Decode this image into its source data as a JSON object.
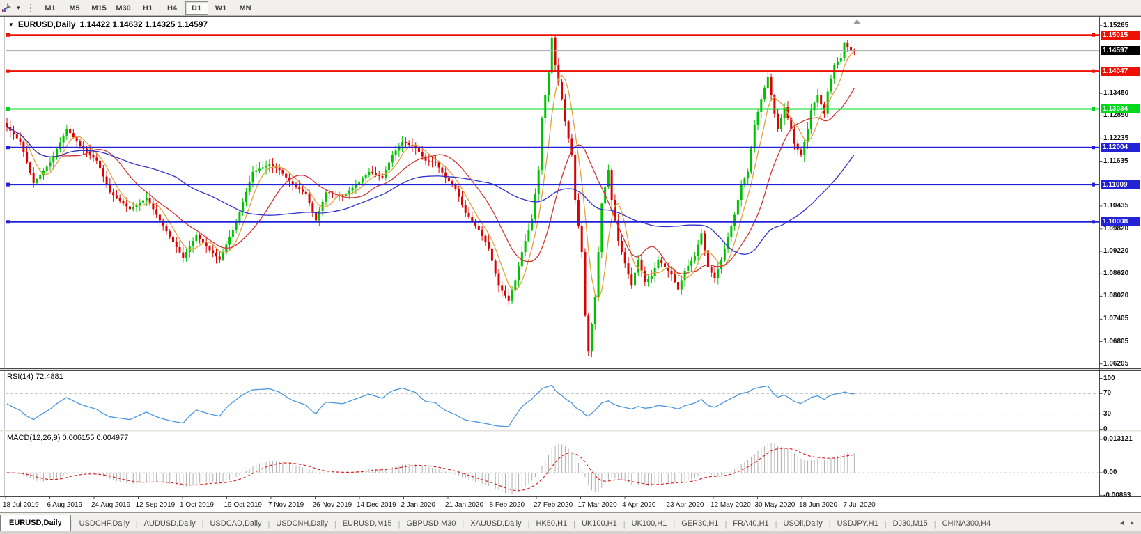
{
  "icons": {
    "dropdown": "▾",
    "title_marker": "▼",
    "scroll_left": "◂",
    "scroll_right": "▸"
  },
  "toolbar": {
    "timeframes": [
      "M1",
      "M5",
      "M15",
      "M30",
      "H1",
      "H4",
      "D1",
      "W1",
      "MN"
    ],
    "active_timeframe": "D1"
  },
  "chart_data": {
    "type": "candlestick",
    "title": "EURUSD,Daily",
    "ohlc_text": "1.14422 1.14632 1.14325 1.14597",
    "current_price": "1.14597",
    "y_axis_ticks": [
      "1.15265",
      "1.13450",
      "1.12850",
      "1.12235",
      "1.11635",
      "1.10435",
      "1.09820",
      "1.09220",
      "1.08620",
      "1.08020",
      "1.07405",
      "1.06805",
      "1.06205"
    ],
    "x_axis_dates": [
      "18 Jul 2019",
      "6 Aug 2019",
      "24 Aug 2019",
      "12 Sep 2019",
      "1 Oct 2019",
      "19 Oct 2019",
      "7 Nov 2019",
      "26 Nov 2019",
      "14 Dec 2019",
      "2 Jan 2020",
      "21 Jan 2020",
      "8 Feb 2020",
      "27 Feb 2020",
      "17 Mar 2020",
      "4 Apr 2020",
      "23 Apr 2020",
      "12 May 2020",
      "30 May 2020",
      "18 Jun 2020",
      "7 Jul 2020"
    ],
    "horizontal_levels": [
      {
        "value": "1.15015",
        "color": "#ee1000"
      },
      {
        "value": "1.14047",
        "color": "#ee1000"
      },
      {
        "value": "1.13034",
        "color": "#00d81e"
      },
      {
        "value": "1.12004",
        "color": "#2222d6"
      },
      {
        "value": "1.11009",
        "color": "#2222d6"
      },
      {
        "value": "1.10008",
        "color": "#2222d6"
      }
    ],
    "price_range": {
      "top": 1.1543,
      "bottom": 1.062
    },
    "candle_count": 256,
    "close_anchors": [
      [
        0,
        1.1255
      ],
      [
        4,
        1.1215
      ],
      [
        8,
        1.1105
      ],
      [
        13,
        1.116
      ],
      [
        18,
        1.125
      ],
      [
        22,
        1.1205
      ],
      [
        27,
        1.1165
      ],
      [
        31,
        1.108
      ],
      [
        37,
        1.1035
      ],
      [
        42,
        1.1065
      ],
      [
        47,
        1.099
      ],
      [
        53,
        1.0905
      ],
      [
        57,
        1.0965
      ],
      [
        61,
        1.0925
      ],
      [
        64,
        1.09
      ],
      [
        69,
        1.1
      ],
      [
        74,
        1.1135
      ],
      [
        79,
        1.1155
      ],
      [
        82,
        1.114
      ],
      [
        86,
        1.11
      ],
      [
        90,
        1.1075
      ],
      [
        93,
        1.1005
      ],
      [
        96,
        1.108
      ],
      [
        101,
        1.107
      ],
      [
        105,
        1.11
      ],
      [
        109,
        1.1135
      ],
      [
        113,
        1.112
      ],
      [
        116,
        1.118
      ],
      [
        119,
        1.1215
      ],
      [
        123,
        1.12
      ],
      [
        126,
        1.1165
      ],
      [
        129,
        1.116
      ],
      [
        132,
        1.112
      ],
      [
        135,
        1.109
      ],
      [
        138,
        1.1025
      ],
      [
        142,
        1.098
      ],
      [
        145,
        1.093
      ],
      [
        148,
        1.083
      ],
      [
        151,
        1.079
      ],
      [
        153,
        1.0845
      ],
      [
        155,
        1.092
      ],
      [
        158,
        1.101
      ],
      [
        160,
        1.114
      ],
      [
        161,
        1.128
      ],
      [
        163,
        1.14
      ],
      [
        164,
        1.1495
      ],
      [
        165,
        1.142
      ],
      [
        167,
        1.133
      ],
      [
        168,
        1.127
      ],
      [
        170,
        1.118
      ],
      [
        171,
        1.106
      ],
      [
        173,
        1.092
      ],
      [
        174,
        1.075
      ],
      [
        175,
        1.0655
      ],
      [
        177,
        1.08
      ],
      [
        178,
        1.092
      ],
      [
        179,
        1.105
      ],
      [
        181,
        1.114
      ],
      [
        182,
        1.106
      ],
      [
        184,
        1.095
      ],
      [
        186,
        1.089
      ],
      [
        188,
        1.083
      ],
      [
        190,
        1.09
      ],
      [
        192,
        1.084
      ],
      [
        194,
        1.0855
      ],
      [
        196,
        1.09
      ],
      [
        198,
        1.088
      ],
      [
        200,
        1.086
      ],
      [
        202,
        1.082
      ],
      [
        204,
        1.087
      ],
      [
        207,
        1.091
      ],
      [
        209,
        1.097
      ],
      [
        211,
        1.088
      ],
      [
        213,
        1.085
      ],
      [
        215,
        1.09
      ],
      [
        217,
        1.096
      ],
      [
        219,
        1.102
      ],
      [
        221,
        1.11
      ],
      [
        223,
        1.1135
      ],
      [
        225,
        1.126
      ],
      [
        227,
        1.133
      ],
      [
        229,
        1.139
      ],
      [
        231,
        1.129
      ],
      [
        232,
        1.125
      ],
      [
        234,
        1.131
      ],
      [
        236,
        1.125
      ],
      [
        237,
        1.121
      ],
      [
        239,
        1.118
      ],
      [
        241,
        1.125
      ],
      [
        242,
        1.13
      ],
      [
        244,
        1.134
      ],
      [
        246,
        1.129
      ],
      [
        247,
        1.135
      ],
      [
        249,
        1.142
      ],
      [
        251,
        1.144
      ],
      [
        252,
        1.148
      ],
      [
        254,
        1.146
      ],
      [
        255,
        1.14597
      ]
    ],
    "ma_overlays": [
      {
        "period": 6,
        "color": "#e2a23c"
      },
      {
        "period": 17,
        "color": "#d23434"
      },
      {
        "period": 52,
        "color": "#3232cc"
      }
    ],
    "candle_up_color": "#00c200",
    "candle_down_color": "#dd0000",
    "current_price_line_color": "#a8a8a8",
    "indicators": [
      {
        "name": "RSI",
        "label": "RSI(14) 72.4881",
        "range": [
          0,
          100
        ],
        "guides": [
          70,
          30
        ],
        "axis_ticks": [
          "100",
          "70",
          "30",
          "0"
        ],
        "line_color": "#4a96dd",
        "guide_color": "#c0c0c0"
      },
      {
        "name": "MACD",
        "label": "MACD(12,26,9) 0.006155 0.004977",
        "axis_ticks": [
          "0.013121",
          "0.00",
          "-0.00893"
        ],
        "histogram_color": "#b0b0b0",
        "signal_color": "#dd2222",
        "zero_line_color": "#cccccc"
      }
    ]
  },
  "tabs": {
    "items": [
      "EURUSD,Daily",
      "USDCHF,Daily",
      "AUDUSD,Daily",
      "USDCAD,Daily",
      "USDCNH,Daily",
      "EURUSD,M15",
      "GBPUSD,M30",
      "XAUUSD,Daily",
      "HK50,H1",
      "UK100,H1",
      "UK100,H1",
      "GER30,H1",
      "FRA40,H1",
      "USOil,Daily",
      "USDJPY,H1",
      "DJ30,M15",
      "CHINA300,H4"
    ],
    "active_index": 0
  }
}
